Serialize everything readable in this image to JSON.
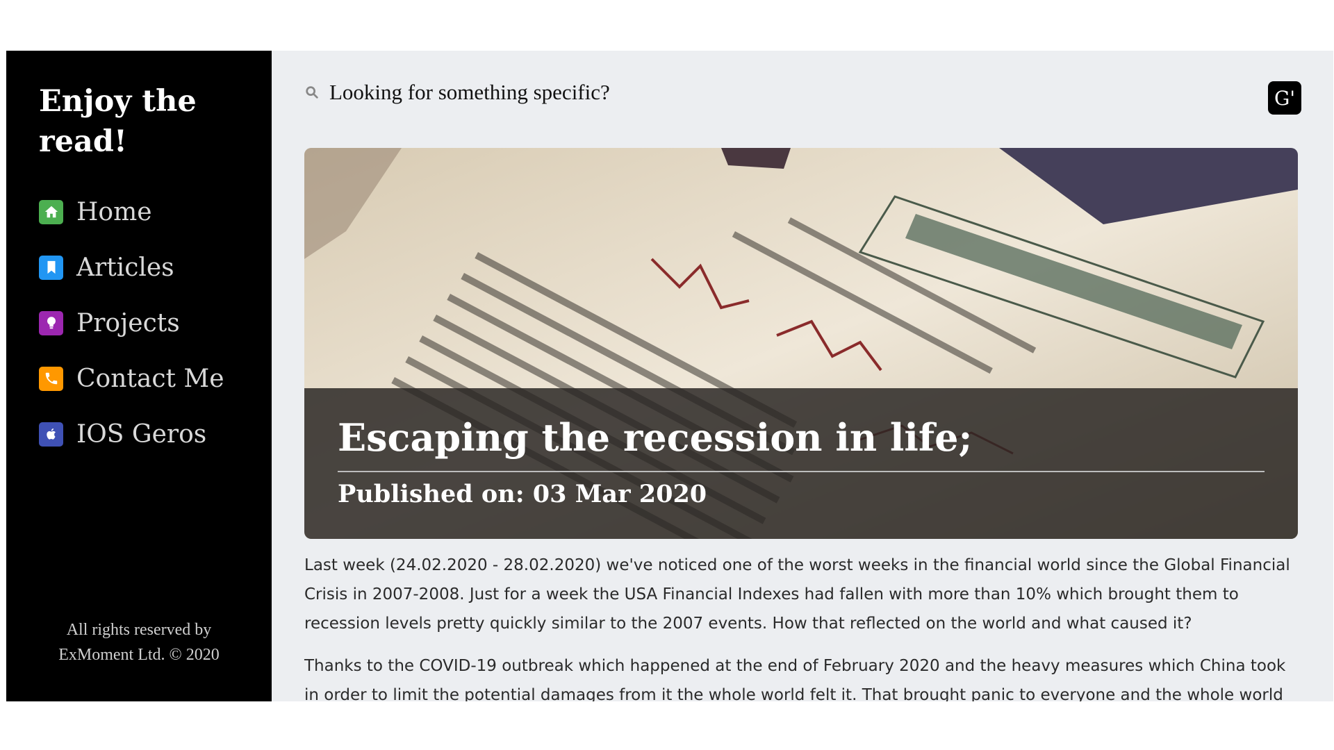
{
  "sidebar": {
    "brand": "Enjoy the read!",
    "nav": [
      {
        "label": "Home",
        "icon": "home-icon",
        "color": "#4caf50"
      },
      {
        "label": "Articles",
        "icon": "bookmark-icon",
        "color": "#2196f3"
      },
      {
        "label": "Projects",
        "icon": "lightbulb-icon",
        "color": "#9c27b0"
      },
      {
        "label": "Contact Me",
        "icon": "phone-icon",
        "color": "#ff9800"
      },
      {
        "label": "IOS Geros",
        "icon": "apple-icon",
        "color": "#3f51b5"
      }
    ],
    "footer_line1": "All rights reserved by",
    "footer_line2": "ExMoment Ltd. © 2020"
  },
  "search": {
    "placeholder": "Looking for something specific?"
  },
  "header": {
    "badge": "G'"
  },
  "hero": {
    "title": "Escaping the recession in life;",
    "published": "Published on: 03 Mar 2020"
  },
  "article": {
    "paragraphs": [
      "Last week (24.02.2020 - 28.02.2020) we've noticed one of the worst weeks in the financial world since the Global Financial Crisis in 2007-2008. Just for a week the USA Financial Indexes had fallen with more than 10% which brought them to recession levels pretty quickly similar to the 2007 events. How that reflected on the world and what caused it?",
      "Thanks to the COVID-19 outbreak which happened at the end of February 2020 and the heavy measures which China took in order to limit the potential damages from it the whole world felt it. That brought panic to everyone and the whole world started"
    ]
  }
}
